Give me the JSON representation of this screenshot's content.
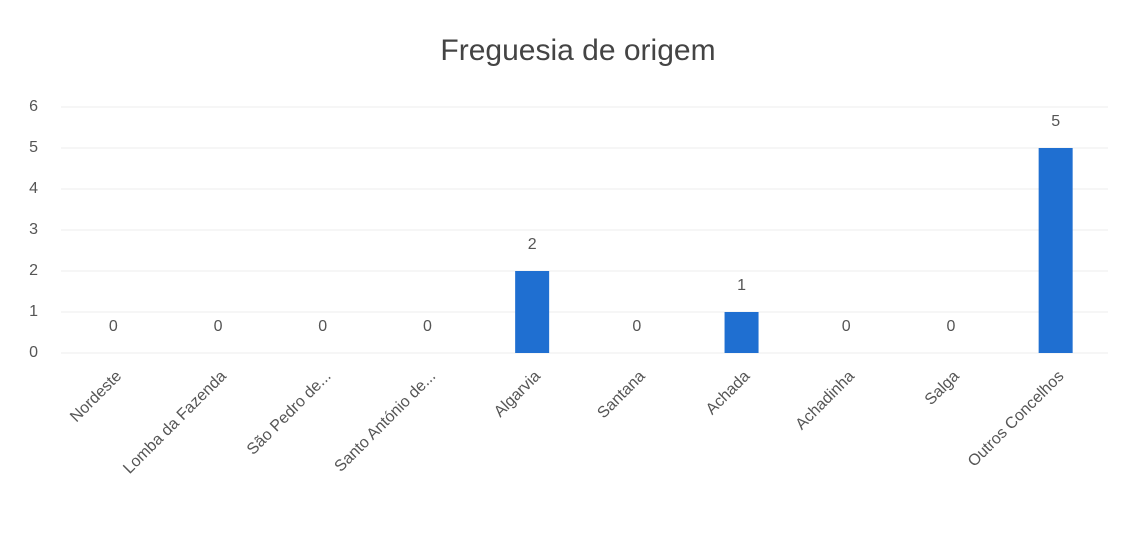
{
  "chart_data": {
    "type": "bar",
    "title": "Freguesia de origem",
    "categories": [
      "Nordeste",
      "Lomba da Fazenda",
      "São Pedro de...",
      "Santo António de...",
      "Algarvia",
      "Santana",
      "Achada",
      "Achadinha",
      "Salga",
      "Outros Concelhos"
    ],
    "values": [
      0,
      0,
      0,
      0,
      2,
      0,
      1,
      0,
      0,
      5
    ],
    "color": "#1f6fd1",
    "ylim": [
      0,
      6
    ],
    "yticks": [
      0,
      1,
      2,
      3,
      4,
      5,
      6
    ],
    "grid": true
  }
}
